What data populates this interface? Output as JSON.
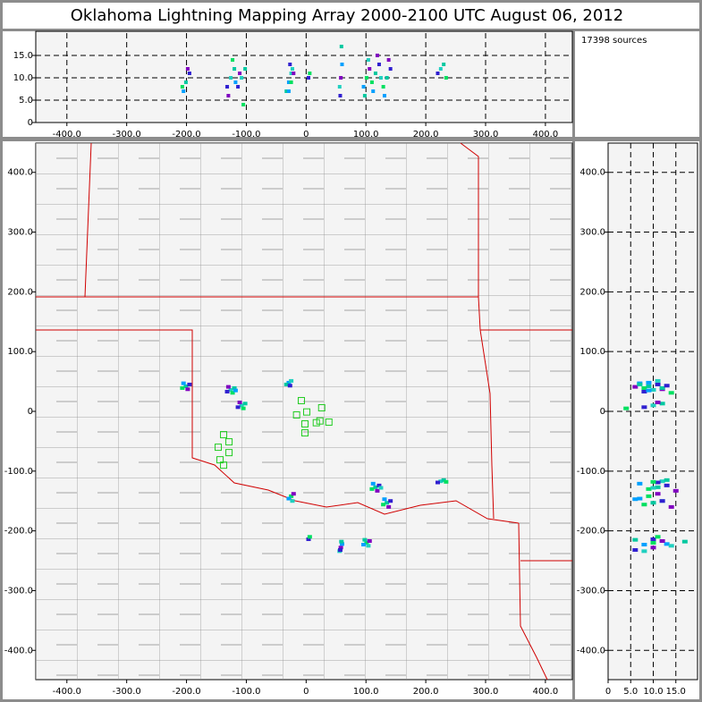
{
  "title": "Oklahoma Lightning Mapping Array   2000-2100 UTC  August 06, 2012",
  "source_count": "17398 sources",
  "chart_data": [
    {
      "type": "scatter",
      "xlim": [
        -452,
        445
      ],
      "ylim": [
        0,
        20
      ],
      "xticks": [
        {
          "value": -400,
          "label": "-400.0"
        },
        {
          "value": -300,
          "label": "-300.0"
        },
        {
          "value": -200,
          "label": "-200.0"
        },
        {
          "value": -100,
          "label": "-100.0"
        },
        0,
        {
          "value": 100,
          "label": "100.0"
        },
        {
          "value": 200,
          "label": "200.0"
        },
        {
          "value": 300,
          "label": "300.0"
        },
        {
          "value": 400,
          "label": "400.0"
        }
      ],
      "yticks": [
        0,
        {
          "value": 5,
          "label": "5.0"
        },
        {
          "value": 10,
          "label": "10.0"
        },
        {
          "value": 15,
          "label": "15.0"
        }
      ],
      "grid": true
    },
    {
      "type": "scatter",
      "xlim": [
        -452,
        445
      ],
      "ylim": [
        -449,
        449
      ],
      "xticks": [
        {
          "value": -400,
          "label": "-400.0"
        },
        {
          "value": -300,
          "label": "-300.0"
        },
        {
          "value": -200,
          "label": "-200.0"
        },
        {
          "value": -100,
          "label": "-100.0"
        },
        0,
        {
          "value": 100,
          "label": "100.0"
        },
        {
          "value": 200,
          "label": "200.0"
        },
        {
          "value": 300,
          "label": "300.0"
        },
        {
          "value": 400,
          "label": "400.0"
        }
      ],
      "yticks": [
        {
          "value": -400,
          "label": "-400.0"
        },
        {
          "value": -300,
          "label": "-300.0"
        },
        {
          "value": -200,
          "label": "-200.0"
        },
        {
          "value": -100,
          "label": "-100.0"
        },
        0,
        {
          "value": 100,
          "label": "100.0"
        },
        {
          "value": 200,
          "label": "200.0"
        },
        {
          "value": 300,
          "label": "300.0"
        },
        {
          "value": 400,
          "label": "400.0"
        }
      ],
      "grid": false,
      "x": [
        -201,
        -195,
        -207,
        -198,
        -205,
        -126,
        -120,
        -132,
        -123,
        -130,
        -118,
        -108,
        -102,
        -114,
        -105,
        -111,
        -29,
        -25,
        -33,
        -27,
        -25,
        -21,
        -29,
        -23,
        116,
        122,
        110,
        119,
        112,
        125,
        135,
        141,
        129,
        138,
        131,
        225,
        230,
        220,
        234,
        58,
        60,
        56,
        59,
        57,
        101,
        106,
        96,
        104,
        98,
        4,
        6
      ],
      "y": [
        42,
        45,
        39,
        37,
        47,
        36,
        39,
        33,
        31,
        41,
        35,
        10,
        13,
        7,
        5,
        15,
        48,
        51,
        45,
        43,
        -142,
        -138,
        -146,
        -150,
        -127,
        -124,
        -130,
        -133,
        -121,
        -128,
        -153,
        -150,
        -156,
        -160,
        -147,
        -117,
        -115,
        -119,
        -118,
        -228,
        -222,
        -234,
        -218,
        -232,
        -220,
        -217,
        -223,
        -225,
        -215,
        -214,
        -210
      ],
      "z": [
        9,
        11,
        8,
        12,
        7,
        10,
        12,
        8,
        14,
        6,
        9,
        10,
        12,
        8,
        4,
        11,
        9,
        11,
        7,
        13,
        9,
        11,
        7,
        12,
        11,
        13,
        9,
        15,
        7,
        10,
        10,
        12,
        8,
        14,
        6,
        12,
        13,
        11,
        10,
        10,
        13,
        8,
        17,
        6,
        10,
        12,
        8,
        14,
        6,
        10,
        11
      ],
      "colors": [
        "#00c8a0",
        "#3020d0",
        "#00e060",
        "#8000c0",
        "#00a0ff",
        "#20d0c0"
      ],
      "stations": {
        "color": "#22cc22",
        "x": [
          -8,
          -16,
          1,
          26,
          23,
          38,
          -2,
          -2,
          17,
          -138,
          -129,
          -147,
          -129,
          -144,
          -138
        ],
        "y": [
          18,
          -6,
          -1,
          6,
          -16,
          -18,
          -21,
          -36,
          -19,
          -39,
          -51,
          -60,
          -69,
          -81,
          -90
        ]
      }
    },
    {
      "type": "scatter",
      "xlim": [
        0,
        19.8
      ],
      "ylim": [
        -449,
        449
      ],
      "xticks": [
        0,
        {
          "value": 5,
          "label": "5.0"
        },
        {
          "value": 10,
          "label": "10.0"
        },
        {
          "value": 15,
          "label": "15.0"
        }
      ],
      "yticks": [
        {
          "value": -400,
          "label": "-400.0"
        },
        {
          "value": -300,
          "label": "-300.0"
        },
        {
          "value": -200,
          "label": "-200.0"
        },
        {
          "value": -100,
          "label": "-100.0"
        },
        0,
        {
          "value": 100,
          "label": "100.0"
        },
        {
          "value": 200,
          "label": "200.0"
        },
        {
          "value": 300,
          "label": "300.0"
        },
        {
          "value": 400,
          "label": "400.0"
        }
      ],
      "grid": true
    }
  ]
}
